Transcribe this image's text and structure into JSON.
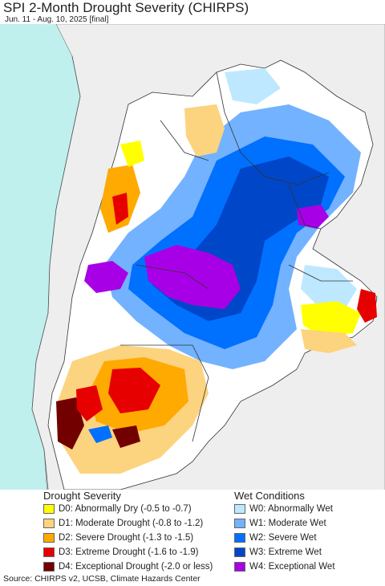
{
  "header": {
    "title": "SPI 2-Month Drought Severity (CHIRPS)",
    "subtitle": "Jun. 11 - Aug. 10, 2025 [final]"
  },
  "legend": {
    "drought": {
      "title": "Drought Severity",
      "items": [
        {
          "label": "D0: Abnormally Dry (-0.5 to -0.7)",
          "color": "#ffff00"
        },
        {
          "label": "D1: Moderate Drought (-0.8 to -1.2)",
          "color": "#fcd37f"
        },
        {
          "label": "D2: Severe Drought (-1.3 to -1.5)",
          "color": "#ffaa00"
        },
        {
          "label": "D3: Extreme Drought (-1.6 to -1.9)",
          "color": "#e60000"
        },
        {
          "label": "D4: Exceptional Drought (-2.0 or less)",
          "color": "#730000"
        }
      ]
    },
    "wet": {
      "title": "Wet Conditions",
      "items": [
        {
          "label": "W0: Abnormally Wet",
          "color": "#bee8ff"
        },
        {
          "label": "W1: Moderate Wet",
          "color": "#73b2ff"
        },
        {
          "label": "W2: Severe Wet",
          "color": "#0070ff"
        },
        {
          "label": "W3: Extreme Wet",
          "color": "#0046c8"
        },
        {
          "label": "W4: Exceptional Wet",
          "color": "#a800e6"
        }
      ]
    }
  },
  "source": "Source: CHIRPS v2, UCSB, Climate Hazards Center",
  "colors": {
    "ocean": "#bff0ee",
    "outside_land": "#eeeeee",
    "border": "#333333"
  }
}
